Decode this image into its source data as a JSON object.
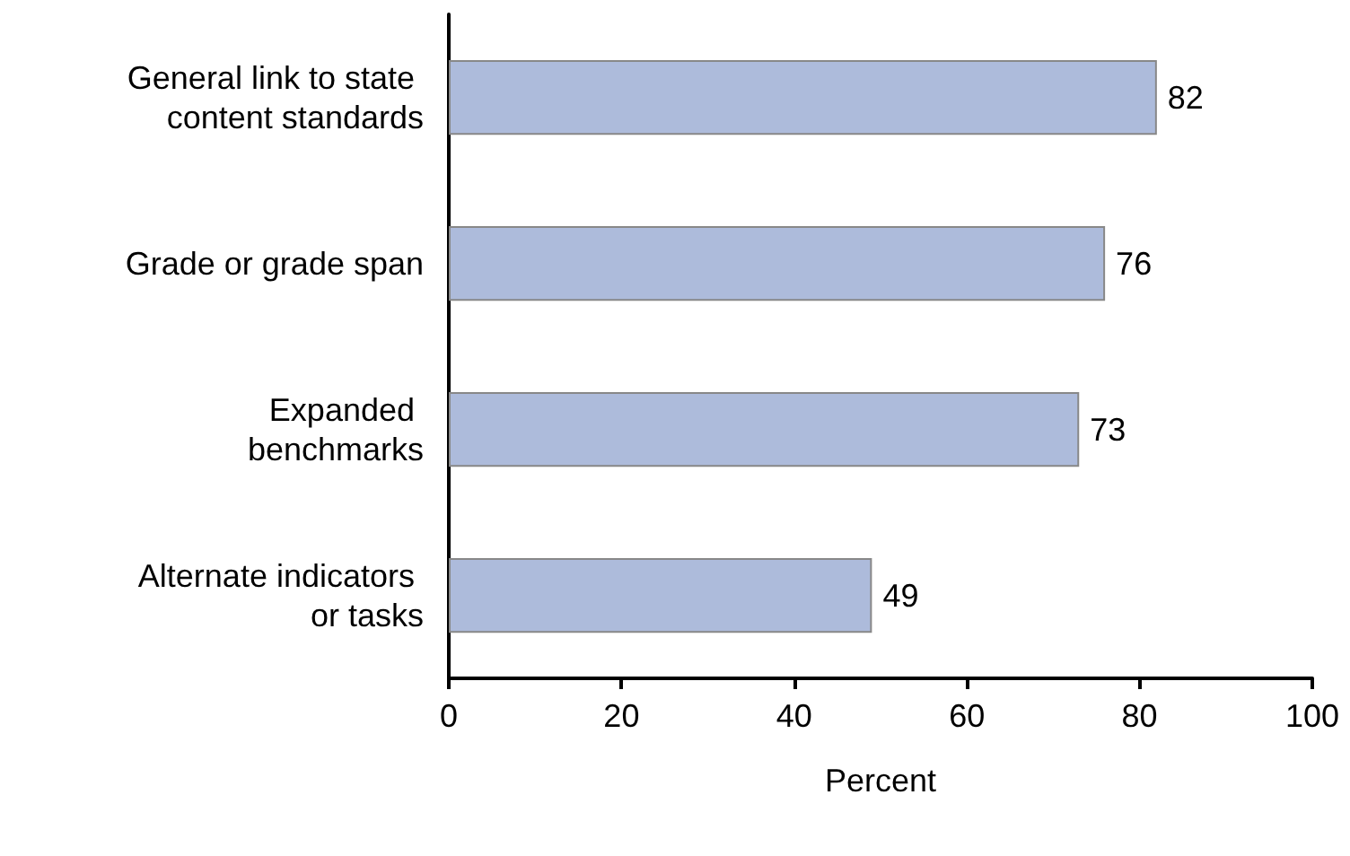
{
  "chart_data": {
    "type": "bar",
    "orientation": "horizontal",
    "xlabel": "Percent",
    "categories": [
      "General link to state content standards",
      "Grade or grade span",
      "Expanded benchmarks",
      "Alternate indicators or tasks"
    ],
    "values": [
      82,
      76,
      73,
      49
    ],
    "color": "#adbbdb",
    "data_labels": true,
    "xlim": [
      0,
      100
    ],
    "xticks": [
      0,
      20,
      40,
      60,
      80,
      100
    ]
  }
}
